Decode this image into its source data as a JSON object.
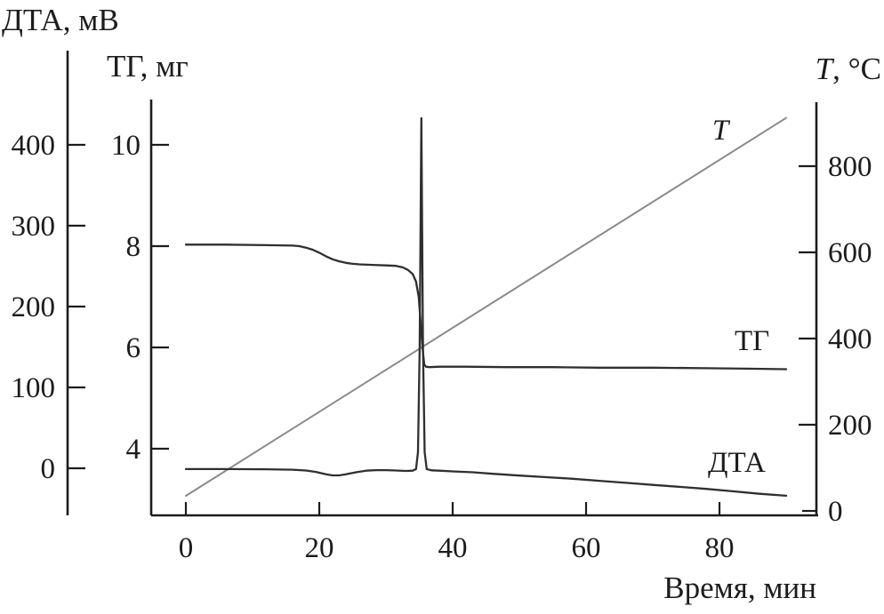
{
  "figure": {
    "background": "#ffffff",
    "text_color": "#1c1c1c"
  },
  "chart_data": {
    "type": "line",
    "title": "",
    "x_axis": {
      "label": "Время, мин",
      "ticks": [
        0,
        20,
        40,
        60,
        80
      ],
      "range": [
        -5,
        94.5
      ]
    },
    "left_outer_axis": {
      "label": "ДТА, мВ",
      "ticks": [
        400,
        300,
        100,
        0
      ],
      "ticks_full": [
        400,
        300,
        200,
        100,
        0
      ],
      "tick_200": 200,
      "range": [
        -58,
        516
      ]
    },
    "left_inner_axis": {
      "label": "ТГ, мг",
      "ticks": [
        10,
        8,
        6,
        4
      ],
      "range": [
        2.7,
        10.9
      ]
    },
    "right_axis": {
      "label": "T, °C",
      "symbol": "T",
      "units": ", °C",
      "ticks": [
        800,
        600,
        400,
        200,
        0
      ],
      "range": [
        -10,
        948
      ]
    },
    "grid": false,
    "legend_position": "inline-curve-labels",
    "series": [
      {
        "name": "T",
        "label": "T",
        "axis": "temperature",
        "color": "#8a8a8a",
        "width": 2,
        "points": [
          [
            0,
            35
          ],
          [
            90,
            912
          ]
        ]
      },
      {
        "name": "TG",
        "label": "ТГ",
        "axis": "tg",
        "color": "#2f2f2f",
        "width": 2.3,
        "points": [
          [
            0,
            8.03
          ],
          [
            6,
            8.03
          ],
          [
            12,
            8.02
          ],
          [
            16,
            8.01
          ],
          [
            17,
            8.0
          ],
          [
            18,
            7.97
          ],
          [
            19,
            7.93
          ],
          [
            20,
            7.87
          ],
          [
            21,
            7.8
          ],
          [
            22,
            7.74
          ],
          [
            23,
            7.7
          ],
          [
            24,
            7.67
          ],
          [
            25,
            7.65
          ],
          [
            26,
            7.64
          ],
          [
            28,
            7.63
          ],
          [
            30,
            7.62
          ],
          [
            31.5,
            7.61
          ],
          [
            32.5,
            7.58
          ],
          [
            33.3,
            7.53
          ],
          [
            34,
            7.45
          ],
          [
            34.5,
            7.3
          ],
          [
            34.9,
            7.0
          ],
          [
            35.2,
            6.5
          ],
          [
            35.5,
            5.95
          ],
          [
            35.75,
            5.66
          ],
          [
            36.0,
            5.62
          ],
          [
            36.5,
            5.61
          ],
          [
            38,
            5.62
          ],
          [
            42,
            5.62
          ],
          [
            48,
            5.61
          ],
          [
            55,
            5.61
          ],
          [
            62,
            5.6
          ],
          [
            70,
            5.6
          ],
          [
            78,
            5.59
          ],
          [
            84,
            5.58
          ],
          [
            90,
            5.57
          ]
        ]
      },
      {
        "name": "DTA",
        "label": "ДТА",
        "axis": "dta",
        "color": "#2f2f2f",
        "width": 2.3,
        "points": [
          [
            0,
            -1
          ],
          [
            6,
            -1
          ],
          [
            12,
            -1.2
          ],
          [
            16,
            -1.8
          ],
          [
            18,
            -2.8
          ],
          [
            19.5,
            -4.5
          ],
          [
            21,
            -7.5
          ],
          [
            22,
            -8.8
          ],
          [
            23,
            -8.8
          ],
          [
            24,
            -7.5
          ],
          [
            25.5,
            -5
          ],
          [
            27,
            -3
          ],
          [
            28.5,
            -2.3
          ],
          [
            30,
            -2.3
          ],
          [
            31.5,
            -2.8
          ],
          [
            33,
            -3.3
          ],
          [
            34,
            -3
          ],
          [
            34.5,
            -1
          ],
          [
            34.8,
            20
          ],
          [
            35.05,
            150
          ],
          [
            35.3,
            433
          ],
          [
            35.55,
            150
          ],
          [
            35.8,
            20
          ],
          [
            36.1,
            -1
          ],
          [
            36.8,
            -2.5
          ],
          [
            38,
            -3
          ],
          [
            40,
            -3.8
          ],
          [
            43,
            -5
          ],
          [
            46,
            -6.8
          ],
          [
            50,
            -9
          ],
          [
            54,
            -11
          ],
          [
            58,
            -13
          ],
          [
            62,
            -15.5
          ],
          [
            66,
            -18
          ],
          [
            70,
            -20.5
          ],
          [
            74,
            -23
          ],
          [
            78,
            -25.5
          ],
          [
            82,
            -28.5
          ],
          [
            86,
            -31.5
          ],
          [
            90,
            -34
          ]
        ]
      }
    ]
  }
}
